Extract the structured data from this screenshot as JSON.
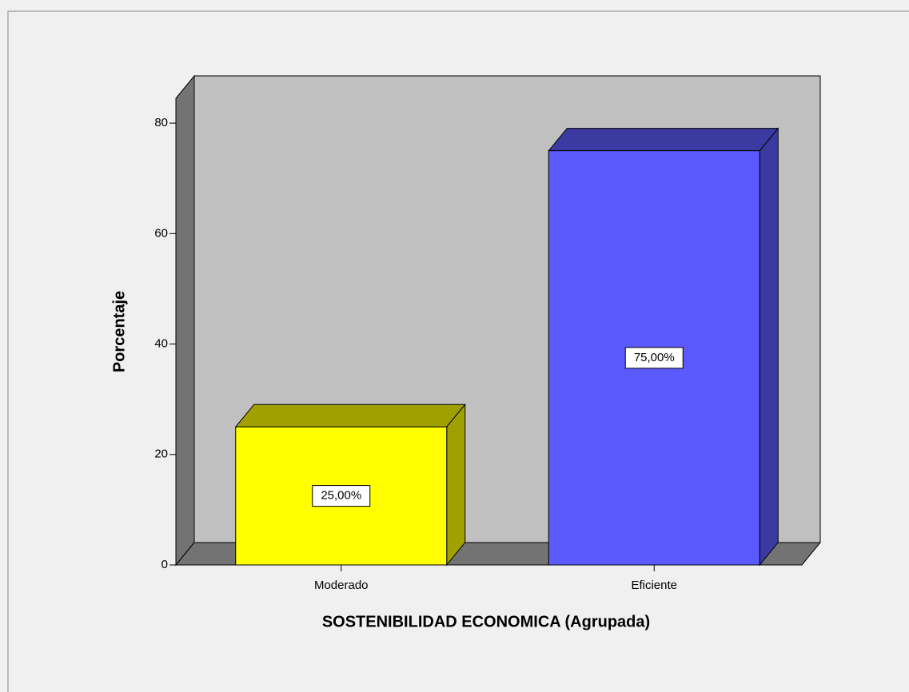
{
  "chart_data": {
    "type": "bar3d",
    "x_label": "SOSTENIBILIDAD ECONOMICA (Agrupada)",
    "y_label": "Porcentaje",
    "categories": [
      "Moderado",
      "Eficiente"
    ],
    "values": [
      25,
      75
    ],
    "value_labels": [
      "25,00%",
      "75,00%"
    ],
    "colors": [
      "#ffff00",
      "#5a5aff"
    ],
    "side_colors": [
      "#a0a000",
      "#3a3aa0"
    ],
    "ylim": [
      0,
      84.5
    ],
    "yticks": [
      0,
      20,
      40,
      60,
      80
    ]
  }
}
